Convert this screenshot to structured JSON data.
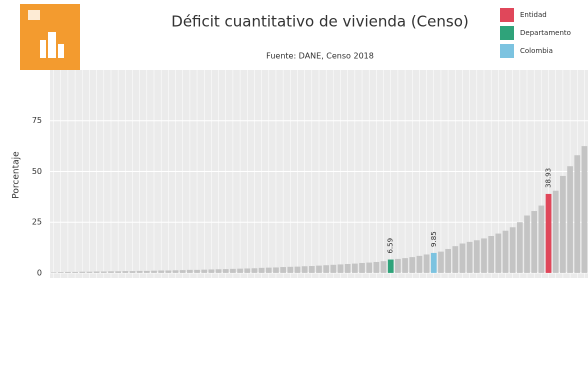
{
  "chart_data": {
    "type": "bar",
    "title": "Déficit cuantitativo de vivienda (Censo)",
    "subtitle": "Fuente: DANE, Censo 2018",
    "y_label": "Porcentaje",
    "categories": [
      null,
      null,
      null,
      null,
      null,
      null,
      null,
      null,
      null,
      null,
      null,
      null,
      null,
      null,
      null,
      null,
      null,
      null,
      null,
      null,
      null,
      null,
      null,
      null,
      null,
      null,
      null,
      null,
      null,
      null,
      null,
      null,
      null,
      null,
      null,
      null,
      null,
      null,
      null,
      null,
      null,
      null,
      null,
      null,
      null,
      null,
      null,
      null,
      null,
      null,
      null,
      null,
      null,
      null,
      null,
      null,
      null,
      null,
      null,
      null,
      null,
      null,
      null,
      null,
      null,
      null,
      null,
      null,
      null,
      null,
      null,
      null,
      null,
      null,
      null
    ],
    "values": [
      0.3,
      0.4,
      0.5,
      0.5,
      0.6,
      0.6,
      0.7,
      0.7,
      0.8,
      0.8,
      0.9,
      0.9,
      1.0,
      1.0,
      1.1,
      1.2,
      1.2,
      1.3,
      1.4,
      1.5,
      1.5,
      1.6,
      1.7,
      1.8,
      1.9,
      2.0,
      2.1,
      2.2,
      2.3,
      2.5,
      2.6,
      2.7,
      2.9,
      3.0,
      3.1,
      3.3,
      3.4,
      3.6,
      3.8,
      4.0,
      4.2,
      4.4,
      4.6,
      4.9,
      5.1,
      5.4,
      5.8,
      6.59,
      6.9,
      7.3,
      7.8,
      8.4,
      9.1,
      9.85,
      10.5,
      11.8,
      13.2,
      14.5,
      15.3,
      16.1,
      17.0,
      18.2,
      19.4,
      20.8,
      22.5,
      25.0,
      28.3,
      30.5,
      33.2,
      38.93,
      40.5,
      47.8,
      52.6,
      58.0,
      62.5
    ],
    "highlights": [
      {
        "name": "Entidad",
        "color": "#e0475a",
        "index": 69,
        "value_label": "38.93"
      },
      {
        "name": "Departamento",
        "color": "#2fa37a",
        "index": 47,
        "value_label": "6.59"
      },
      {
        "name": "Colombia",
        "color": "#7cc3e0",
        "index": 53,
        "value_label": "9.85"
      }
    ],
    "color": "#c4c4c4",
    "ylim": [
      -2.5,
      100
    ],
    "yticks": [
      0,
      25,
      50,
      75
    ],
    "grid": true
  }
}
